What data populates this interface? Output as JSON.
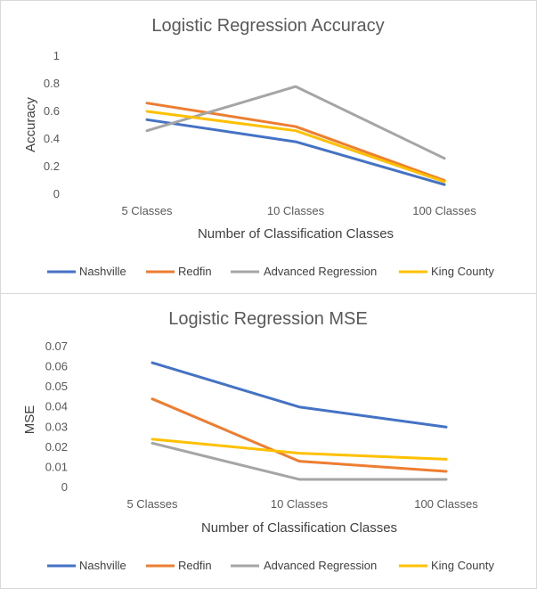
{
  "chart_data": [
    {
      "type": "line",
      "title": "Logistic Regression Accuracy",
      "xlabel": "Number of Classification Classes",
      "ylabel": "Accuracy",
      "categories": [
        "5 Classes",
        "10 Classes",
        "100 Classes"
      ],
      "ylim": [
        0,
        1
      ],
      "yticks": [
        0,
        0.2,
        0.4,
        0.6,
        0.8,
        1
      ],
      "ytick_labels": [
        "0",
        "0.2",
        "0.4",
        "0.6",
        "0.8",
        "1"
      ],
      "grid": false,
      "legend": "bottom",
      "series": [
        {
          "name": "Nashville",
          "color": "#4472c4",
          "values": [
            0.54,
            0.38,
            0.07
          ]
        },
        {
          "name": "Redfin",
          "color": "#ed7d31",
          "values": [
            0.66,
            0.49,
            0.1
          ]
        },
        {
          "name": "Advanced Regression",
          "color": "#a5a5a5",
          "values": [
            0.46,
            0.78,
            0.26
          ]
        },
        {
          "name": "King County",
          "color": "#ffc000",
          "values": [
            0.6,
            0.46,
            0.09
          ]
        }
      ]
    },
    {
      "type": "line",
      "title": "Logistic Regression MSE",
      "xlabel": "Number of Classification Classes",
      "ylabel": "MSE",
      "categories": [
        "5 Classes",
        "10 Classes",
        "100 Classes"
      ],
      "ylim": [
        0,
        0.07
      ],
      "yticks": [
        0,
        0.01,
        0.02,
        0.03,
        0.04,
        0.05,
        0.06,
        0.07
      ],
      "ytick_labels": [
        "0",
        "0.01",
        "0.02",
        "0.03",
        "0.04",
        "0.05",
        "0.06",
        "0.07"
      ],
      "grid": false,
      "legend": "bottom",
      "series": [
        {
          "name": "Nashville",
          "color": "#4472c4",
          "values": [
            0.062,
            0.04,
            0.03
          ]
        },
        {
          "name": "Redfin",
          "color": "#ed7d31",
          "values": [
            0.044,
            0.013,
            0.008
          ]
        },
        {
          "name": "Advanced Regression",
          "color": "#a5a5a5",
          "values": [
            0.022,
            0.004,
            0.004
          ]
        },
        {
          "name": "King County",
          "color": "#ffc000",
          "values": [
            0.024,
            0.017,
            0.014
          ]
        }
      ]
    }
  ]
}
